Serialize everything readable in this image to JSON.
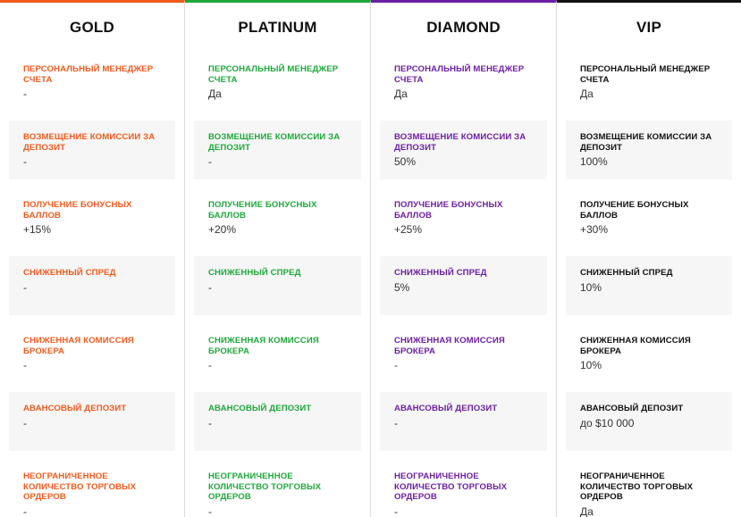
{
  "plans": [
    {
      "name": "GOLD",
      "accent": "#f05a1c",
      "label_color": "#f05a1c",
      "features": [
        {
          "label": "ПЕРСОНАЛЬНЫЙ МЕНЕДЖЕР СЧЕТА",
          "value": "-"
        },
        {
          "label": "ВОЗМЕЩЕНИЕ КОМИССИИ ЗА ДЕПОЗИТ",
          "value": "-"
        },
        {
          "label": "ПОЛУЧЕНИЕ БОНУСНЫХ БАЛЛОВ",
          "value": "+15%"
        },
        {
          "label": "СНИЖЕННЫЙ СПРЕД",
          "value": "-"
        },
        {
          "label": "СНИЖЕННАЯ КОМИССИЯ БРОКЕРА",
          "value": "-"
        },
        {
          "label": "АВАНСОВЫЙ ДЕПОЗИТ",
          "value": "-"
        },
        {
          "label": "НЕОГРАНИЧЕННОЕ КОЛИЧЕСТВО ТОРГОВЫХ ОРДЕРОВ",
          "value": "-"
        }
      ]
    },
    {
      "name": "PLATINUM",
      "accent": "#1ea83a",
      "label_color": "#1ea83a",
      "features": [
        {
          "label": "ПЕРСОНАЛЬНЫЙ МЕНЕДЖЕР СЧЕТА",
          "value": "Да"
        },
        {
          "label": "ВОЗМЕЩЕНИЕ КОМИССИИ ЗА ДЕПОЗИТ",
          "value": "-"
        },
        {
          "label": "ПОЛУЧЕНИЕ БОНУСНЫХ БАЛЛОВ",
          "value": "+20%"
        },
        {
          "label": "СНИЖЕННЫЙ СПРЕД",
          "value": "-"
        },
        {
          "label": "СНИЖЕННАЯ КОМИССИЯ БРОКЕРА",
          "value": "-"
        },
        {
          "label": "АВАНСОВЫЙ ДЕПОЗИТ",
          "value": "-"
        },
        {
          "label": "НЕОГРАНИЧЕННОЕ КОЛИЧЕСТВО ТОРГОВЫХ ОРДЕРОВ",
          "value": "-"
        }
      ]
    },
    {
      "name": "DIAMOND",
      "accent": "#6c1fa3",
      "label_color": "#6c1fa3",
      "features": [
        {
          "label": "ПЕРСОНАЛЬНЫЙ МЕНЕДЖЕР СЧЕТА",
          "value": "Да"
        },
        {
          "label": "ВОЗМЕЩЕНИЕ КОМИССИИ ЗА ДЕПОЗИТ",
          "value": "50%"
        },
        {
          "label": "ПОЛУЧЕНИЕ БОНУСНЫХ БАЛЛОВ",
          "value": "+25%"
        },
        {
          "label": "СНИЖЕННЫЙ СПРЕД",
          "value": "5%"
        },
        {
          "label": "СНИЖЕННАЯ КОМИССИЯ БРОКЕРА",
          "value": "-"
        },
        {
          "label": "АВАНСОВЫЙ ДЕПОЗИТ",
          "value": "-"
        },
        {
          "label": "НЕОГРАНИЧЕННОЕ КОЛИЧЕСТВО ТОРГОВЫХ ОРДЕРОВ",
          "value": "-"
        }
      ]
    },
    {
      "name": "VIP",
      "accent": "#111111",
      "label_color": "#111111",
      "features": [
        {
          "label": "ПЕРСОНАЛЬНЫЙ МЕНЕДЖЕР СЧЕТА",
          "value": "Да"
        },
        {
          "label": "ВОЗМЕЩЕНИЕ КОМИССИИ ЗА ДЕПОЗИТ",
          "value": "100%"
        },
        {
          "label": "ПОЛУЧЕНИЕ БОНУСНЫХ БАЛЛОВ",
          "value": "+30%"
        },
        {
          "label": "СНИЖЕННЫЙ СПРЕД",
          "value": "10%"
        },
        {
          "label": "СНИЖЕННАЯ КОМИССИЯ БРОКЕРА",
          "value": "10%"
        },
        {
          "label": "АВАНСОВЫЙ ДЕПОЗИТ",
          "value": "до $10 000"
        },
        {
          "label": "НЕОГРАНИЧЕННОЕ КОЛИЧЕСТВО ТОРГОВЫХ ОРДЕРОВ",
          "value": "Да"
        }
      ]
    }
  ]
}
